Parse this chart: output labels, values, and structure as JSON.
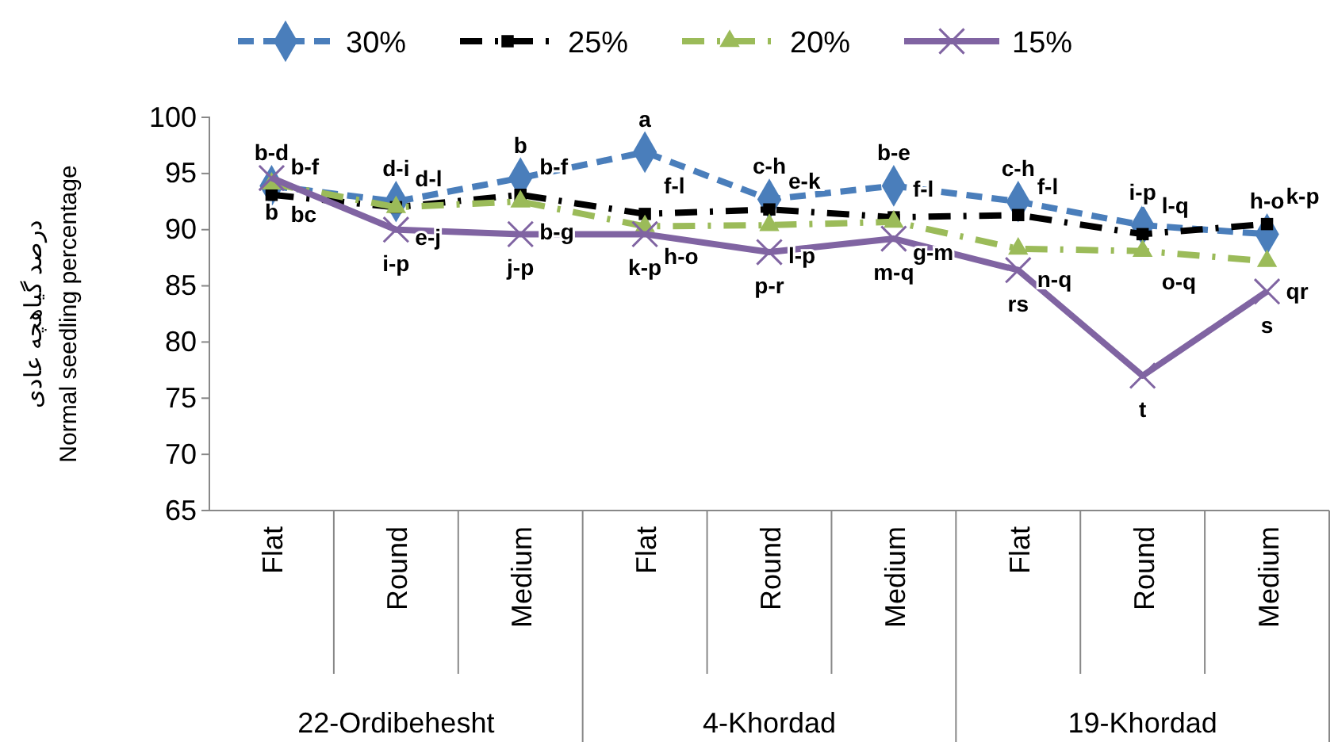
{
  "chart_data": {
    "type": "line",
    "ylabel": "درصد گیاهچه عادی\nNormal seedling percentage",
    "categories": [
      "Flat",
      "Round",
      "Medium",
      "Flat",
      "Round",
      "Medium",
      "Flat",
      "Round",
      "Medium"
    ],
    "annotations": [
      "22-Ordibehesht",
      "4-Khordad",
      "19-Khordad"
    ],
    "ylim": [
      65,
      100
    ],
    "yticks": [
      65,
      70,
      75,
      80,
      85,
      90,
      95,
      100
    ],
    "grid": false,
    "legend": "top",
    "series": [
      {
        "name": "30%",
        "color": "#4a7ebb",
        "marker": "diamond",
        "line_style": "dashed",
        "values": [
          93.9,
          92.5,
          94.6,
          96.9,
          92.7,
          93.9,
          92.5,
          90.4,
          89.6
        ],
        "value_labels": [
          "b-d",
          "d-i",
          "b",
          "a",
          "c-h",
          "b-e",
          "c-h",
          "i-p",
          "h-o"
        ]
      },
      {
        "name": "25%",
        "color": "#000000",
        "marker": "square",
        "line_style": "dashdot",
        "values": [
          93.1,
          92.0,
          93.1,
          91.4,
          91.8,
          91.1,
          91.3,
          89.6,
          90.5
        ],
        "value_labels": [
          "b-f",
          "d-l",
          "b-f",
          "f-l",
          "e-k",
          "f-l",
          "f-l",
          "l-q",
          "k-p"
        ]
      },
      {
        "name": "20%",
        "color": "#9bbb59",
        "marker": "triangle",
        "line_style": "dashdot",
        "values": [
          94.1,
          92.0,
          92.5,
          90.3,
          90.4,
          90.7,
          88.3,
          88.1,
          87.2
        ],
        "value_labels": [
          "bc",
          "e-j",
          "b-g",
          "h-o",
          "l-p",
          "g-m",
          "n-q",
          "o-q",
          "qr"
        ]
      },
      {
        "name": "15%",
        "color": "#8064a2",
        "marker": "cross",
        "line_style": "solid",
        "values": [
          94.6,
          90.0,
          89.6,
          89.6,
          88.0,
          89.2,
          86.4,
          77.0,
          84.5
        ],
        "value_labels": [
          "b",
          "i-p",
          "j-p",
          "k-p",
          "p-r",
          "m-q",
          "rs",
          "t",
          "s"
        ]
      }
    ]
  }
}
